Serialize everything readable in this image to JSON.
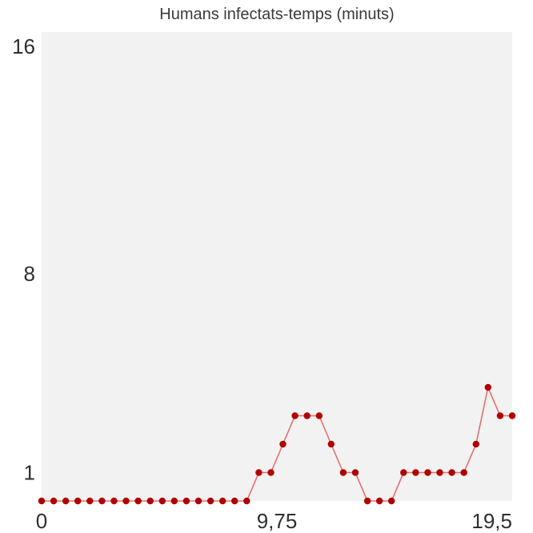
{
  "chart_data": {
    "type": "line",
    "title": "Humans infectats-temps (minuts)",
    "xlabel": "",
    "ylabel": "",
    "x_tick_labels": [
      "0",
      "9,75",
      "19,5"
    ],
    "x_tick_values": [
      0,
      9.75,
      19.5
    ],
    "y_tick_labels": [
      "1",
      "8",
      "16"
    ],
    "y_tick_values": [
      1,
      8,
      16
    ],
    "xlim": [
      0,
      19.5
    ],
    "ylim": [
      0,
      16
    ],
    "grid": false,
    "colors": {
      "plot_background": "#f2f2f2",
      "line": "#e36f6f",
      "marker": "#b00000"
    },
    "series": [
      {
        "x": [
          0,
          0.5,
          1.0,
          1.5,
          2.0,
          2.5,
          3.0,
          3.5,
          4.0,
          4.5,
          5.0,
          5.5,
          6.0,
          6.5,
          7.0,
          7.5,
          8.0,
          8.5,
          9.0,
          9.5,
          10.0,
          10.5,
          11.0,
          11.5,
          12.0,
          12.5,
          13.0,
          13.5,
          14.0,
          14.5,
          15.0,
          15.5,
          16.0,
          16.5,
          17.0,
          17.5,
          18.0,
          18.5,
          19.0,
          19.5
        ],
        "values": [
          0,
          0,
          0,
          0,
          0,
          0,
          0,
          0,
          0,
          0,
          0,
          0,
          0,
          0,
          0,
          0,
          0,
          0,
          1,
          1,
          2,
          3,
          3,
          3,
          2,
          1,
          1,
          0,
          0,
          0,
          1,
          1,
          1,
          1,
          1,
          1,
          2,
          4,
          3,
          3
        ]
      }
    ]
  }
}
